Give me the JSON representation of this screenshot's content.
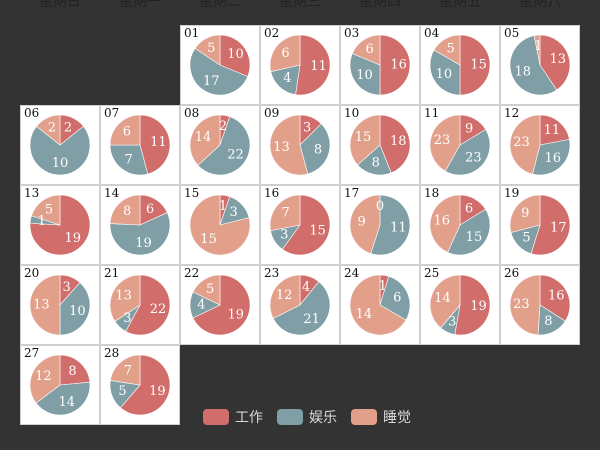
{
  "chart_data": {
    "type": "pie",
    "weekdays": [
      "星期日",
      "星期一",
      "星期二",
      "星期三",
      "星期四",
      "星期五",
      "星期六"
    ],
    "first_weekday_index": 2,
    "categories": [
      "工作",
      "娱乐",
      "睡觉"
    ],
    "colors": [
      "#d16d6a",
      "#7f9ea5",
      "#e2a08b"
    ],
    "legend_position": "bottom",
    "days": [
      {
        "day": "01",
        "values": [
          10,
          17,
          5
        ]
      },
      {
        "day": "02",
        "values": [
          11,
          4,
          6
        ]
      },
      {
        "day": "03",
        "values": [
          16,
          10,
          6
        ]
      },
      {
        "day": "04",
        "values": [
          15,
          10,
          5
        ]
      },
      {
        "day": "05",
        "values": [
          13,
          18,
          1
        ]
      },
      {
        "day": "06",
        "values": [
          2,
          10,
          2
        ]
      },
      {
        "day": "07",
        "values": [
          11,
          7,
          6
        ]
      },
      {
        "day": "08",
        "values": [
          2,
          22,
          14
        ]
      },
      {
        "day": "09",
        "values": [
          3,
          8,
          13
        ]
      },
      {
        "day": "10",
        "values": [
          18,
          8,
          15
        ]
      },
      {
        "day": "11",
        "values": [
          9,
          23,
          23
        ]
      },
      {
        "day": "12",
        "values": [
          11,
          16,
          23
        ]
      },
      {
        "day": "13",
        "values": [
          19,
          1,
          5
        ]
      },
      {
        "day": "14",
        "values": [
          6,
          19,
          8
        ]
      },
      {
        "day": "15",
        "values": [
          1,
          3,
          15
        ]
      },
      {
        "day": "16",
        "values": [
          15,
          3,
          7
        ]
      },
      {
        "day": "17",
        "values": [
          0,
          11,
          9
        ]
      },
      {
        "day": "18",
        "values": [
          6,
          15,
          16
        ]
      },
      {
        "day": "19",
        "values": [
          17,
          5,
          9
        ]
      },
      {
        "day": "20",
        "values": [
          3,
          10,
          13
        ]
      },
      {
        "day": "21",
        "values": [
          22,
          3,
          13
        ]
      },
      {
        "day": "22",
        "values": [
          19,
          4,
          5
        ]
      },
      {
        "day": "23",
        "values": [
          4,
          21,
          12
        ]
      },
      {
        "day": "24",
        "values": [
          1,
          6,
          14
        ]
      },
      {
        "day": "25",
        "values": [
          19,
          3,
          14
        ]
      },
      {
        "day": "26",
        "values": [
          16,
          8,
          23
        ]
      },
      {
        "day": "27",
        "values": [
          8,
          14,
          12
        ]
      },
      {
        "day": "28",
        "values": [
          19,
          5,
          7
        ]
      }
    ]
  }
}
